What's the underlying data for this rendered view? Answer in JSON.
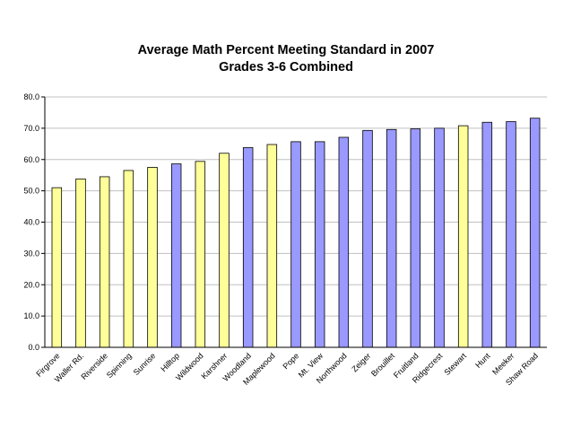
{
  "chart_data": {
    "type": "bar",
    "title": "Average Math Percent Meeting Standard in 2007",
    "subtitle": "Grades 3-6 Combined",
    "xlabel": "",
    "ylabel": "",
    "ylim": [
      0,
      80
    ],
    "yticks": [
      "0.0",
      "10.0",
      "20.0",
      "30.0",
      "40.0",
      "50.0",
      "60.0",
      "70.0",
      "80.0"
    ],
    "grid": true,
    "legend": "none",
    "colors": {
      "yellow": "#ffff99",
      "blue": "#9999ff",
      "outline": "#000000",
      "gridline": "#c0c0c0"
    },
    "categories": [
      "Firgrove",
      "Waller Rd.",
      "Riverside",
      "Spinning",
      "Sunrise",
      "Hilltop",
      "Wildwood",
      "Karshner",
      "Woodland",
      "Maplewood",
      "Pope",
      "Mt. View",
      "Northwood",
      "Zeiger",
      "Brouillet",
      "Fruitland",
      "Ridgecrest",
      "Stewart",
      "Hunt",
      "Meeker",
      "Shaw Road"
    ],
    "values": [
      51.0,
      53.8,
      54.5,
      56.5,
      57.5,
      58.6,
      59.4,
      62.0,
      63.8,
      64.8,
      65.7,
      65.7,
      67.1,
      69.3,
      69.6,
      69.8,
      70.0,
      70.8,
      71.9,
      72.1,
      73.2
    ],
    "bar_colors": [
      "yellow",
      "yellow",
      "yellow",
      "yellow",
      "yellow",
      "blue",
      "yellow",
      "yellow",
      "blue",
      "yellow",
      "blue",
      "blue",
      "blue",
      "blue",
      "blue",
      "blue",
      "blue",
      "yellow",
      "blue",
      "blue",
      "blue"
    ]
  }
}
